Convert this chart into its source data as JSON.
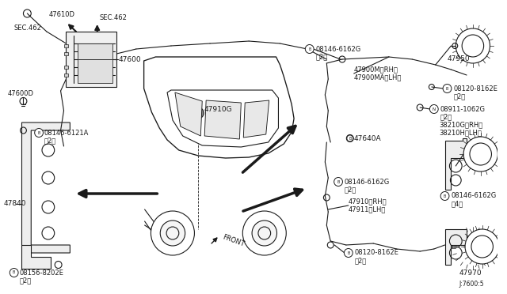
{
  "bg_color": "#ffffff",
  "lc": "#1a1a1a",
  "lw": 0.8,
  "fig_w": 6.4,
  "fig_h": 3.72,
  "xlim": [
    0,
    640
  ],
  "ylim": [
    0,
    372
  ]
}
